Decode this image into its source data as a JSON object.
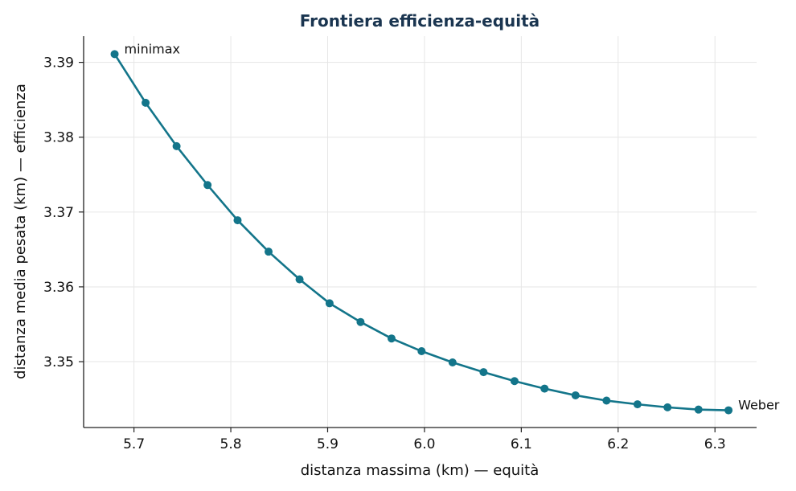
{
  "chart_data": {
    "type": "line",
    "title": "Frontiera efficienza-equità",
    "xlabel": "distanza massima (km) — equità",
    "ylabel": "distanza media pesata (km) — efficienza",
    "xlim": [
      5.648,
      6.343
    ],
    "ylim": [
      3.3412,
      3.3935
    ],
    "xticks": [
      5.7,
      5.8,
      5.9,
      6.0,
      6.1,
      6.2,
      6.3
    ],
    "yticks": [
      3.35,
      3.36,
      3.37,
      3.38,
      3.39
    ],
    "grid": true,
    "color": "#13758a",
    "series": [
      {
        "x": [
          5.68,
          5.712,
          5.744,
          5.776,
          5.807,
          5.839,
          5.871,
          5.902,
          5.934,
          5.966,
          5.997,
          6.029,
          6.061,
          6.093,
          6.124,
          6.156,
          6.188,
          6.22,
          6.251,
          6.283,
          6.314
        ],
        "y": [
          3.3911,
          3.3846,
          3.3788,
          3.3736,
          3.3689,
          3.3647,
          3.361,
          3.3578,
          3.3553,
          3.3531,
          3.3514,
          3.3499,
          3.3486,
          3.3474,
          3.3464,
          3.3455,
          3.3448,
          3.3443,
          3.3439,
          3.3436,
          3.3435
        ]
      }
    ],
    "annotations": [
      {
        "text": "minimax",
        "x": 5.68,
        "y": 3.3911
      },
      {
        "text": "Weber",
        "x": 6.314,
        "y": 3.3435
      }
    ]
  }
}
